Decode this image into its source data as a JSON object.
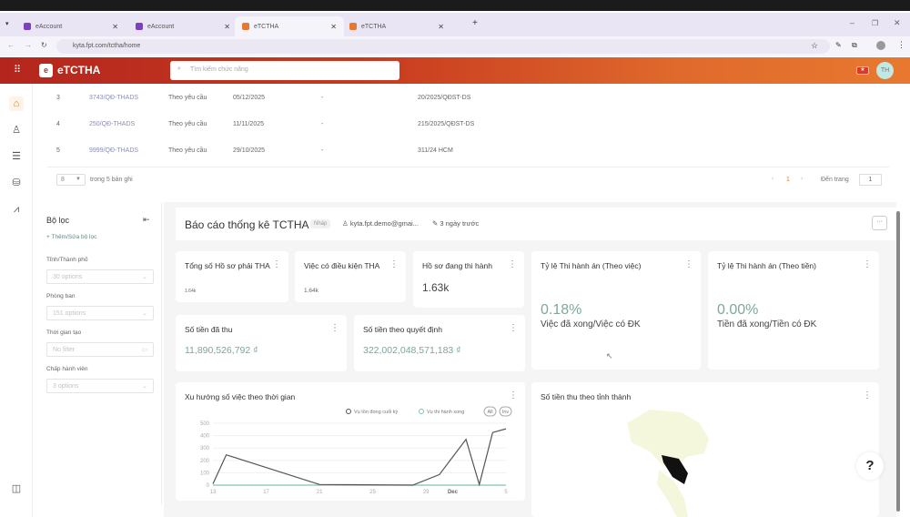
{
  "browser": {
    "tabs": [
      {
        "label": "eAccount",
        "color": "#7b3fc4"
      },
      {
        "label": "eAccount",
        "color": "#7b3fc4"
      },
      {
        "label": "eTCTHA",
        "color": "#e8782f",
        "active": true
      },
      {
        "label": "eTCTHA",
        "color": "#e8782f"
      }
    ],
    "url": "kyta.fpt.com/tctha/home"
  },
  "app": {
    "title": "eTCTHA",
    "search_placeholder": "Tìm kiếm chức năng",
    "avatar": "TH",
    "accent": "#c0321e"
  },
  "table": {
    "rows": [
      {
        "no": "3",
        "code": "3743/QĐ-THADS",
        "type": "Theo yêu cầu",
        "date": "05/12/2025",
        "dash": "-",
        "ref": "20/2025/QĐST-DS"
      },
      {
        "no": "4",
        "code": "250/QĐ-THADS",
        "type": "Theo yêu cầu",
        "date": "11/11/2025",
        "dash": "-",
        "ref": "215/2025/QĐST-DS"
      },
      {
        "no": "5",
        "code": "9999/QĐ-THADS",
        "type": "Theo yêu cầu",
        "date": "29/10/2025",
        "dash": "-",
        "ref": "311/24 HCM"
      }
    ],
    "page_size": "8",
    "total_text": "trong 5 bản ghi",
    "current_page": "1",
    "goto_label": "Đến trang",
    "goto_value": "1"
  },
  "filter": {
    "title": "Bộ lọc",
    "add": "Thêm/Sửa bộ lọc",
    "fields": [
      {
        "label": "Tỉnh/Thành phố",
        "value": "30 options"
      },
      {
        "label": "Phòng ban",
        "value": "151 options"
      },
      {
        "label": "Thời gian tạo",
        "value": "No filter"
      },
      {
        "label": "Chấp hành viên",
        "value": "3 options"
      }
    ]
  },
  "report": {
    "title": "Báo cáo thống kê TCTHA",
    "badge": "Nháp",
    "owner": "kyta.fpt.demo@gmai...",
    "edited": "3 ngày trước",
    "cards": {
      "total": {
        "title": "Tổng số Hồ sơ phải THA",
        "value": "1.64k"
      },
      "eligible": {
        "title": "Việc có điều kiện THA",
        "value": "1.64k"
      },
      "ongoing": {
        "title": "Hồ sơ đang thi hành",
        "value": "1.63k"
      },
      "rate_case": {
        "title": "Tỷ lệ Thi hành án (Theo việc)",
        "value": "0.18%",
        "sub": "Việc đã xong/Việc có ĐK"
      },
      "rate_money": {
        "title": "Tỷ lệ Thi hành án (Theo tiền)",
        "value": "0.00%",
        "sub": "Tiền đã xong/Tiền có ĐK"
      },
      "collected": {
        "title": "Số tiền đã thu",
        "value": "11,890,526,792 ₫"
      },
      "decided": {
        "title": "Số tiền theo quyết định",
        "value": "322,002,048,571,183 ₫"
      }
    },
    "map_title": "Số tiền thu theo tỉnh thành"
  },
  "chart_data": {
    "type": "line",
    "title": "Xu hướng số việc theo thời gian",
    "x": [
      "2025-11-13",
      "2025-11-14",
      "2025-11-21",
      "2025-11-28",
      "2025-11-30",
      "2025-12-02",
      "2025-12-03",
      "2025-12-04",
      "2025-12-05"
    ],
    "series": [
      {
        "name": "Vụ tồn đọng cuối kỳ",
        "color": "#555555",
        "values": [
          10,
          245,
          5,
          0,
          85,
          370,
          5,
          425,
          455
        ]
      },
      {
        "name": "Vụ thi hành xong",
        "color": "#7fc4b0",
        "values": [
          0,
          0,
          0,
          0,
          0,
          0,
          0,
          0,
          0
        ]
      }
    ],
    "legend_buttons": [
      "All",
      "Inv"
    ],
    "xticks": [
      "13",
      "17",
      "21",
      "25",
      "29",
      "Dec",
      "5"
    ],
    "yticks": [
      "0",
      "100",
      "200",
      "300",
      "400",
      "500"
    ],
    "ylim": [
      0,
      500
    ],
    "grid": true,
    "legend": "top-right"
  },
  "help": "?"
}
